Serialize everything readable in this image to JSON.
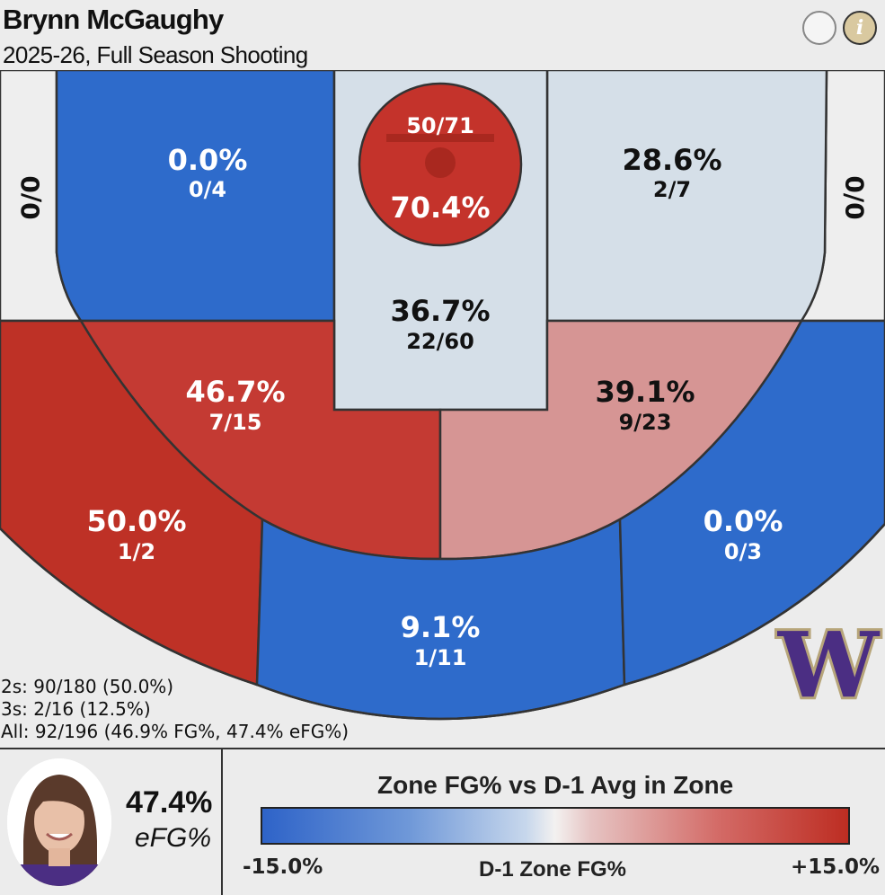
{
  "header": {
    "title": "Brynn McGaughy",
    "subtitle": "2025-26, Full Season Shooting"
  },
  "icons": {
    "share": "circle-button",
    "info": "info-icon"
  },
  "chart_data": {
    "type": "heatmap",
    "zones": [
      {
        "name": "left-corner-three",
        "pct": "",
        "made_att": "0/0",
        "color": "#eeeeee",
        "text_color": "#111111"
      },
      {
        "name": "right-corner-three",
        "pct": "",
        "made_att": "0/0",
        "color": "#eeeeee",
        "text_color": "#111111"
      },
      {
        "name": "left-baseline-two",
        "pct": "0.0%",
        "made_att": "0/4",
        "color": "#2e6bcb",
        "text_color": "#ffffff"
      },
      {
        "name": "right-baseline-two",
        "pct": "28.6%",
        "made_att": "2/7",
        "color": "#d5dfe8",
        "text_color": "#111111"
      },
      {
        "name": "rim",
        "pct": "70.4%",
        "made_att": "50/71",
        "color": "#c4332b",
        "text_color": "#ffffff"
      },
      {
        "name": "paint",
        "pct": "36.7%",
        "made_att": "22/60",
        "color": "#d5dfe8",
        "text_color": "#111111"
      },
      {
        "name": "left-elbow-two",
        "pct": "46.7%",
        "made_att": "7/15",
        "color": "#c43a33",
        "text_color": "#ffffff"
      },
      {
        "name": "right-elbow-two",
        "pct": "39.1%",
        "made_att": "9/23",
        "color": "#d69594",
        "text_color": "#111111"
      },
      {
        "name": "left-wing-three",
        "pct": "50.0%",
        "made_att": "1/2",
        "color": "#be3126",
        "text_color": "#ffffff"
      },
      {
        "name": "top-three",
        "pct": "9.1%",
        "made_att": "1/11",
        "color": "#2e6bcb",
        "text_color": "#ffffff"
      },
      {
        "name": "right-wing-three",
        "pct": "0.0%",
        "made_att": "0/3",
        "color": "#2e6bcb",
        "text_color": "#ffffff"
      }
    ],
    "legend": {
      "title": "Zone FG% vs D-1 Avg in Zone",
      "min_label": "-15.0%",
      "max_label": "+15.0%",
      "mid_label": "D-1 Zone FG%",
      "colors": [
        "#2e63c8",
        "#f3f1f0",
        "#bd2d22"
      ]
    }
  },
  "summary": {
    "twos": "2s: 90/180 (50.0%)",
    "threes": "3s: 2/16 (12.5%)",
    "all": "All: 92/196 (46.9% FG%, 47.4% eFG%)"
  },
  "player": {
    "efg_value": "47.4%",
    "efg_label": "eFG%"
  },
  "logo": {
    "letter": "W",
    "colors": [
      "#4b2e83",
      "#b7a57a"
    ]
  }
}
